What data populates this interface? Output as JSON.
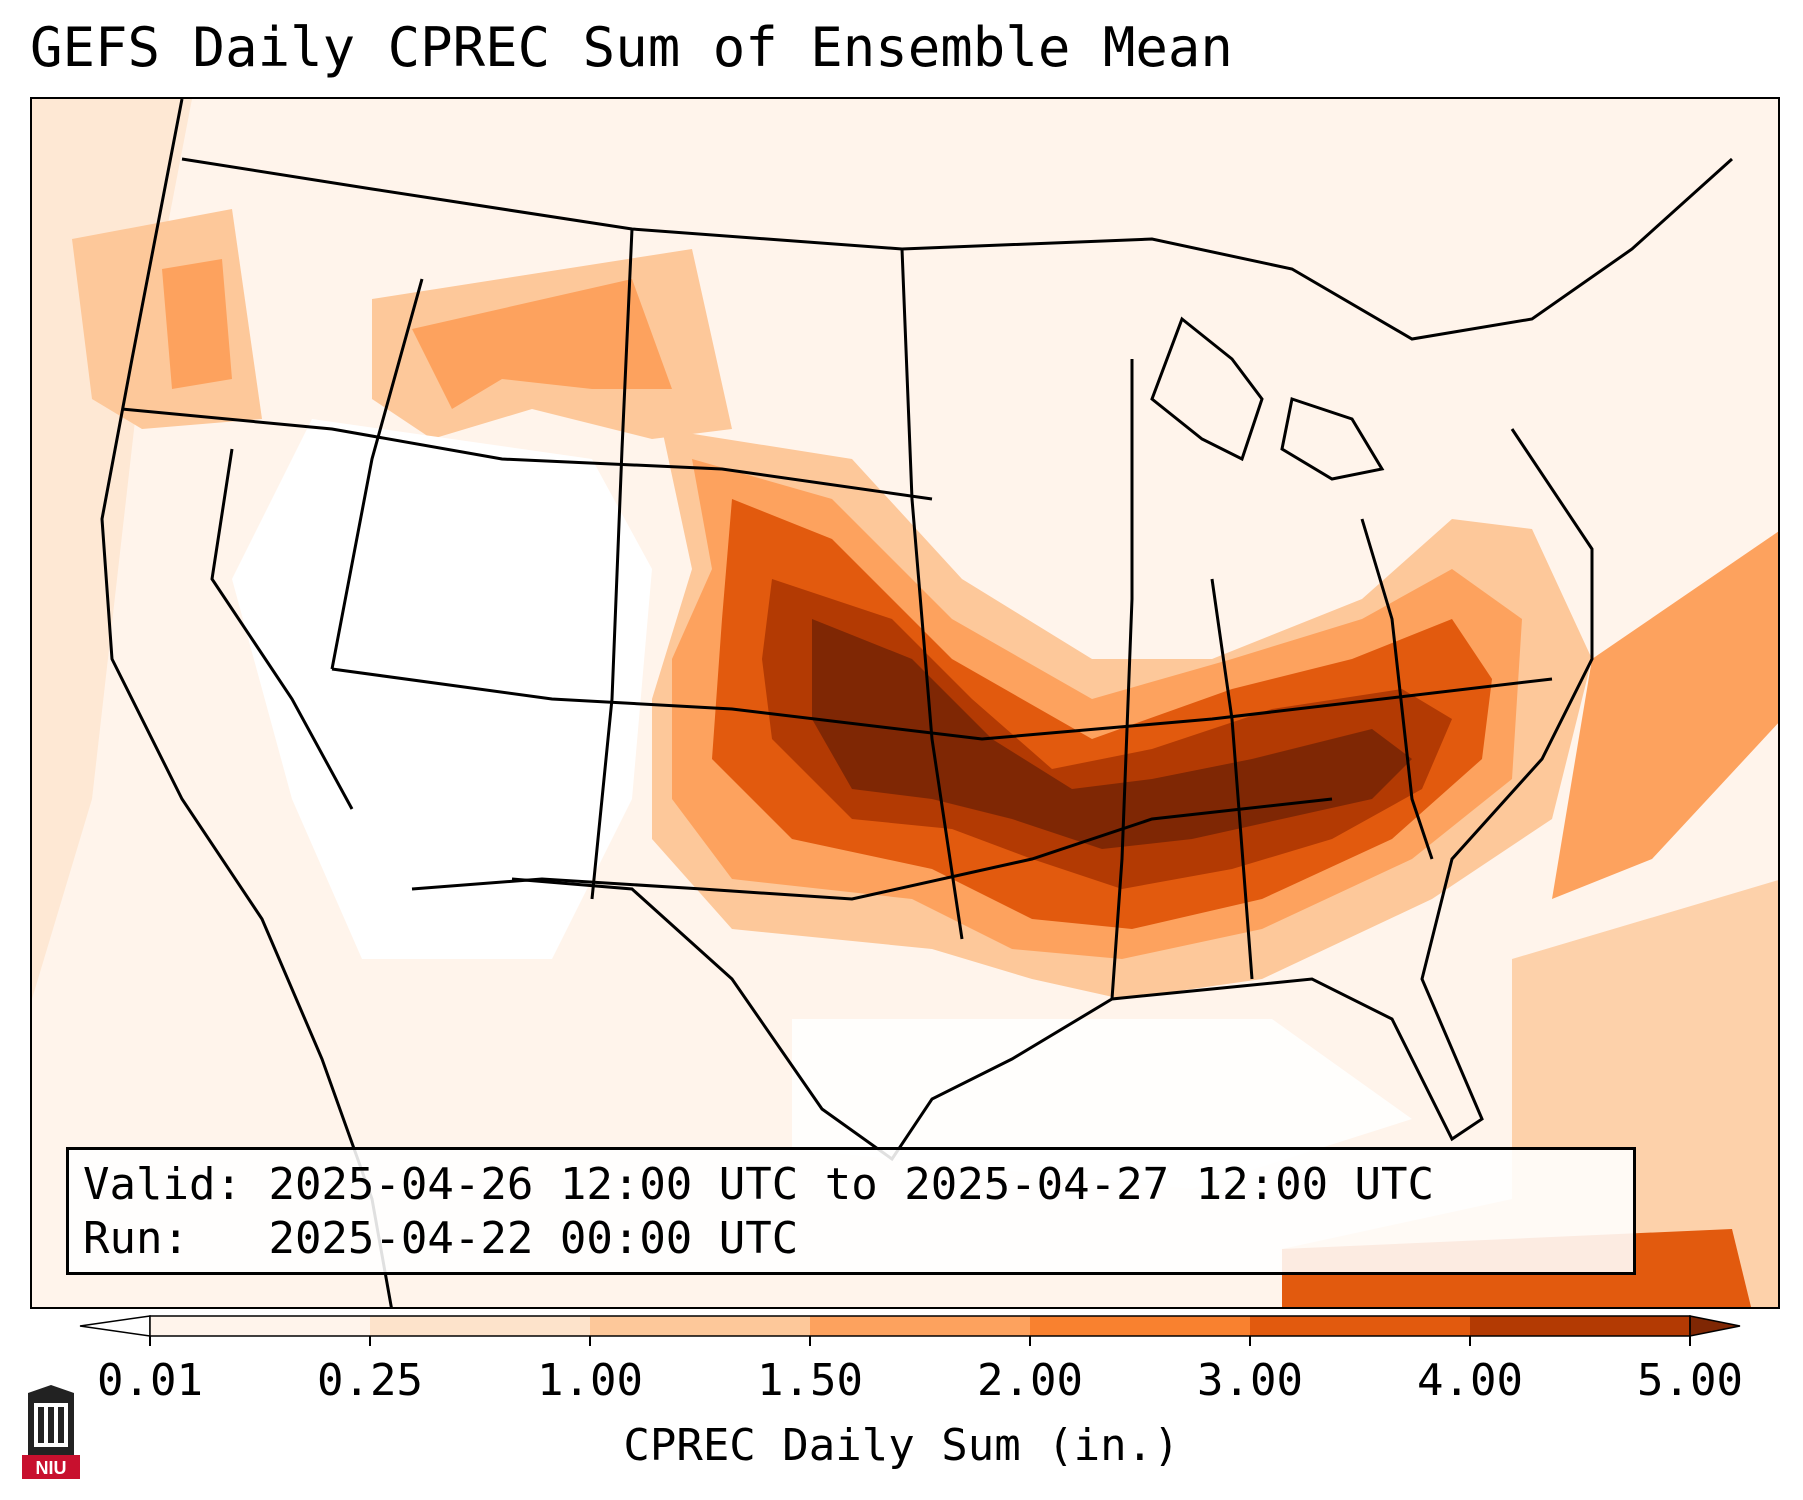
{
  "title": "GEFS Daily CPREC Sum of Ensemble Mean",
  "info_box": {
    "valid_label": "Valid:",
    "valid_value": "2025-04-26 12:00 UTC to 2025-04-27 12:00 UTC",
    "run_label": "Run:",
    "run_value": "2025-04-22 00:00 UTC"
  },
  "colorbar": {
    "label": "CPREC Daily Sum (in.)",
    "ticks": [
      "0.01",
      "0.25",
      "1.00",
      "1.50",
      "2.00",
      "3.00",
      "4.00",
      "5.00"
    ],
    "colors": [
      "#fff4eb",
      "#fde3cb",
      "#fdc89a",
      "#fda25e",
      "#f9812f",
      "#e25a0e",
      "#b33a03",
      "#7f2704"
    ],
    "extend": "both",
    "under_color": "#ffffff",
    "over_color": "#7f2704"
  },
  "logo": {
    "text": "NIU",
    "icon": "university-building-icon",
    "color": "#c8102e"
  }
}
